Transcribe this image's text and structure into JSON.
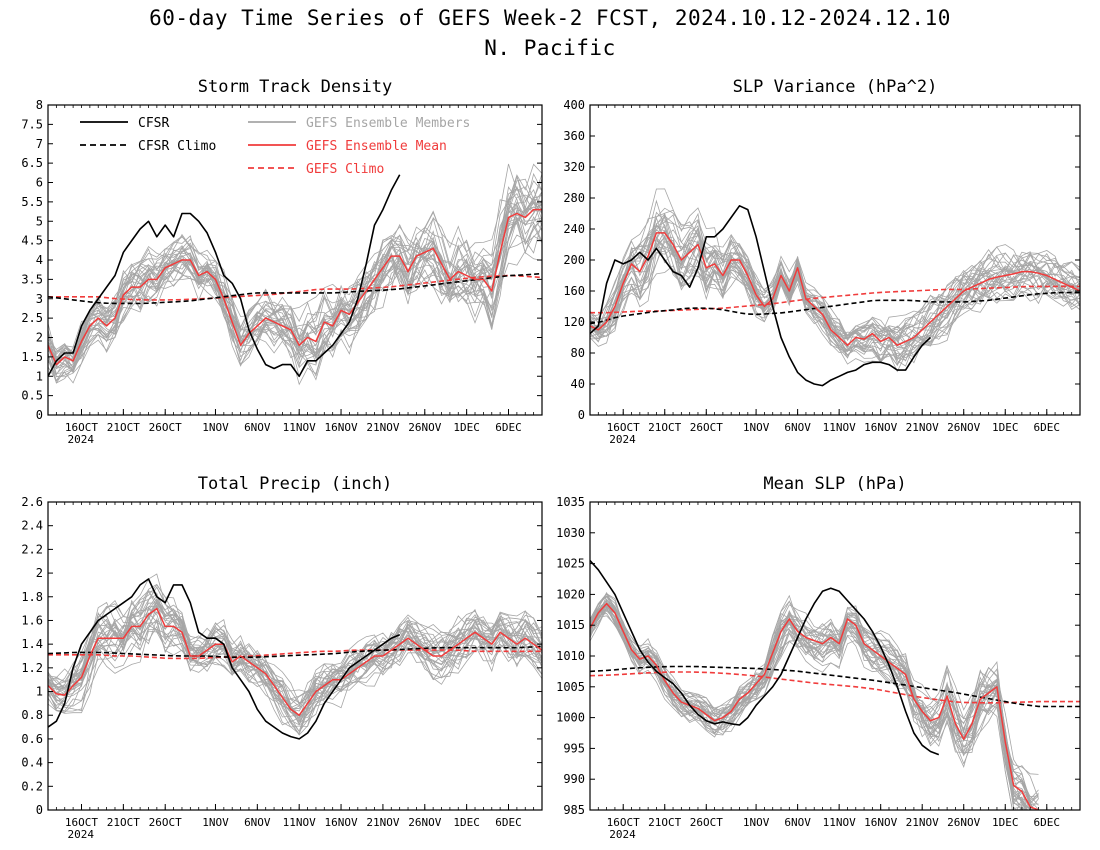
{
  "figure": {
    "title_line1": "60-day Time Series of GEFS Week-2 FCST, 2024.10.12-2024.12.10",
    "title_line2": "N. Pacific"
  },
  "legend": {
    "cfsr": "CFSR",
    "cfsr_climo": "CFSR Climo",
    "members": "GEFS Ensemble Members",
    "mean": "GEFS Ensemble Mean",
    "gefs_climo": "GEFS Climo"
  },
  "colors": {
    "cfsr": "#000000",
    "members": "#a6a6a6",
    "mean": "#f03c3c",
    "gefs_climo": "#f03c3c"
  },
  "chart_data": [
    {
      "type": "line",
      "title": "Storm Track Density",
      "xlabel": "",
      "ylabel": "",
      "x_range_days": [
        0,
        59
      ],
      "x_ticks": [
        {
          "day": 4,
          "label": "16OCT",
          "sub": "2024"
        },
        {
          "day": 9,
          "label": "21OCT"
        },
        {
          "day": 14,
          "label": "26OCT"
        },
        {
          "day": 20,
          "label": "1NOV"
        },
        {
          "day": 25,
          "label": "6NOV"
        },
        {
          "day": 30,
          "label": "11NOV"
        },
        {
          "day": 35,
          "label": "16NOV"
        },
        {
          "day": 40,
          "label": "21NOV"
        },
        {
          "day": 45,
          "label": "26NOV"
        },
        {
          "day": 50,
          "label": "1DEC"
        },
        {
          "day": 55,
          "label": "6DEC"
        }
      ],
      "ylim": [
        0,
        8
      ],
      "y_ticks": [
        "0",
        "0.5",
        "1",
        "1.5",
        "2",
        "2.5",
        "3",
        "3.5",
        "4",
        "4.5",
        "5",
        "5.5",
        "6",
        "6.5",
        "7",
        "7.5",
        "8"
      ],
      "cfsr": [
        1.0,
        1.4,
        1.6,
        1.6,
        2.3,
        2.7,
        3.0,
        3.3,
        3.6,
        4.2,
        4.5,
        4.8,
        5.0,
        4.6,
        4.9,
        4.6,
        5.2,
        5.2,
        5.0,
        4.7,
        4.2,
        3.6,
        3.4,
        3.0,
        2.2,
        1.7,
        1.3,
        1.2,
        1.3,
        1.3,
        1.0,
        1.4,
        1.4,
        1.6,
        1.8,
        2.1,
        2.4,
        3.0,
        3.9,
        4.9,
        5.3,
        5.8,
        6.2
      ],
      "cfsr_climo": [
        3.05,
        3.0,
        2.95,
        2.9,
        2.88,
        2.88,
        2.88,
        2.9,
        2.92,
        2.95,
        3.0,
        3.05,
        3.1,
        3.15,
        3.15,
        3.15,
        3.15,
        3.15,
        3.15,
        3.18,
        3.2,
        3.22,
        3.25,
        3.3,
        3.35,
        3.4,
        3.45,
        3.5,
        3.55,
        3.6,
        3.62,
        3.65
      ],
      "cfsr_climo_start_day": 0,
      "mean": [
        1.8,
        1.3,
        1.5,
        1.4,
        1.9,
        2.3,
        2.5,
        2.3,
        2.5,
        3.1,
        3.3,
        3.3,
        3.5,
        3.5,
        3.8,
        3.9,
        4.0,
        4.0,
        3.6,
        3.7,
        3.5,
        3.0,
        2.4,
        1.8,
        2.1,
        2.3,
        2.5,
        2.4,
        2.3,
        2.2,
        1.8,
        2.0,
        1.9,
        2.4,
        2.3,
        2.7,
        2.6,
        2.9,
        3.2,
        3.5,
        3.8,
        4.1,
        4.1,
        3.7,
        4.1,
        4.2,
        4.3,
        3.9,
        3.5,
        3.7,
        3.6,
        3.5,
        3.5,
        3.2,
        4.2,
        5.1,
        5.2,
        5.1,
        5.3,
        5.3
      ],
      "gefs_climo": [
        3.05,
        3.05,
        3.05,
        3.05,
        3.0,
        2.98,
        2.97,
        2.97,
        2.98,
        3.0,
        3.02,
        3.05,
        3.08,
        3.1,
        3.15,
        3.2,
        3.25,
        3.25,
        3.25,
        3.28,
        3.3,
        3.35,
        3.4,
        3.45,
        3.5,
        3.55,
        3.58,
        3.6,
        3.58,
        3.55
      ],
      "members": {
        "count": 31,
        "spread": [
          1.2,
          1.2,
          1.2,
          1.25,
          1.3,
          1.3,
          1.4,
          1.5,
          1.6,
          1.7,
          1.8,
          1.8,
          1.7,
          1.6,
          1.5,
          1.5,
          1.4,
          1.4,
          1.4,
          1.4,
          1.5,
          1.5,
          1.5,
          1.5,
          1.5,
          1.5,
          1.6,
          1.6,
          1.8,
          1.9,
          2.0,
          2.0,
          2.0,
          2.0,
          1.9,
          1.8,
          1.9,
          2.0,
          2.0,
          2.0,
          2.1,
          2.2,
          2.2,
          2.2,
          2.2,
          2.2,
          2.3,
          2.3,
          2.4,
          2.4,
          2.4,
          2.4,
          2.5,
          2.5,
          2.6,
          2.6,
          2.6,
          2.6,
          2.6,
          2.6
        ]
      }
    },
    {
      "type": "line",
      "title": "SLP Variance (hPa^2)",
      "xlabel": "",
      "ylabel": "",
      "x_range_days": [
        0,
        59
      ],
      "x_ticks": [
        {
          "day": 4,
          "label": "16OCT",
          "sub": "2024"
        },
        {
          "day": 9,
          "label": "21OCT"
        },
        {
          "day": 14,
          "label": "26OCT"
        },
        {
          "day": 20,
          "label": "1NOV"
        },
        {
          "day": 25,
          "label": "6NOV"
        },
        {
          "day": 30,
          "label": "11NOV"
        },
        {
          "day": 35,
          "label": "16NOV"
        },
        {
          "day": 40,
          "label": "21NOV"
        },
        {
          "day": 45,
          "label": "26NOV"
        },
        {
          "day": 50,
          "label": "1DEC"
        },
        {
          "day": 55,
          "label": "6DEC"
        }
      ],
      "ylim": [
        0,
        400
      ],
      "y_ticks": [
        "0",
        "40",
        "80",
        "120",
        "160",
        "200",
        "240",
        "280",
        "320",
        "360",
        "400"
      ],
      "cfsr": [
        105,
        115,
        170,
        200,
        195,
        200,
        210,
        200,
        215,
        200,
        185,
        180,
        165,
        190,
        230,
        230,
        240,
        255,
        270,
        265,
        230,
        185,
        140,
        100,
        75,
        55,
        45,
        40,
        38,
        45,
        50,
        55,
        58,
        65,
        68,
        68,
        65,
        58,
        58,
        75,
        90,
        100
      ],
      "cfsr_climo": [
        118,
        120,
        125,
        128,
        130,
        132,
        134,
        135,
        137,
        138,
        138,
        137,
        135,
        132,
        130,
        130,
        131,
        132,
        134,
        136,
        138,
        140,
        142,
        144,
        146,
        148,
        148,
        148,
        148,
        147,
        146,
        146,
        146,
        146,
        147,
        148,
        150,
        152,
        154,
        156,
        157,
        158,
        158,
        158
      ],
      "cfsr_climo_start_day": 0,
      "mean": [
        115,
        110,
        120,
        140,
        170,
        195,
        185,
        205,
        235,
        235,
        220,
        200,
        210,
        220,
        190,
        195,
        180,
        200,
        200,
        180,
        155,
        140,
        150,
        180,
        160,
        190,
        150,
        140,
        130,
        110,
        100,
        90,
        100,
        98,
        105,
        95,
        100,
        90,
        95,
        100,
        110,
        120,
        130,
        140,
        150,
        160,
        165,
        170,
        175,
        178,
        180,
        182,
        185,
        185,
        183,
        180,
        175,
        170,
        165,
        160
      ],
      "gefs_climo": [
        132,
        132,
        133,
        134,
        134,
        135,
        136,
        137,
        138,
        140,
        142,
        144,
        147,
        150,
        152,
        154,
        156,
        158,
        159,
        160,
        161,
        162,
        162,
        163,
        164,
        165,
        166,
        166,
        166,
        166
      ],
      "members": {
        "count": 31,
        "spread": [
          45,
          50,
          60,
          70,
          80,
          90,
          100,
          105,
          110,
          110,
          105,
          100,
          95,
          90,
          85,
          80,
          80,
          75,
          70,
          65,
          60,
          55,
          55,
          50,
          50,
          50,
          50,
          50,
          50,
          50,
          50,
          50,
          50,
          55,
          60,
          65,
          70,
          75,
          80,
          80,
          80,
          80,
          80,
          80,
          80,
          80,
          80,
          80,
          80,
          80,
          80,
          80,
          80,
          80,
          80,
          75,
          75,
          70,
          70,
          70
        ]
      }
    },
    {
      "type": "line",
      "title": "Total Precip (inch)",
      "xlabel": "",
      "ylabel": "",
      "x_range_days": [
        0,
        59
      ],
      "x_ticks": [
        {
          "day": 4,
          "label": "16OCT",
          "sub": "2024"
        },
        {
          "day": 9,
          "label": "21OCT"
        },
        {
          "day": 14,
          "label": "26OCT"
        },
        {
          "day": 20,
          "label": "1NOV"
        },
        {
          "day": 25,
          "label": "6NOV"
        },
        {
          "day": 30,
          "label": "11NOV"
        },
        {
          "day": 35,
          "label": "16NOV"
        },
        {
          "day": 40,
          "label": "21NOV"
        },
        {
          "day": 45,
          "label": "26NOV"
        },
        {
          "day": 50,
          "label": "1DEC"
        },
        {
          "day": 55,
          "label": "6DEC"
        }
      ],
      "ylim": [
        0,
        2.6
      ],
      "y_ticks": [
        "0",
        "0.2",
        "0.4",
        "0.6",
        "0.8",
        "1",
        "1.2",
        "1.4",
        "1.6",
        "1.8",
        "2",
        "2.2",
        "2.4",
        "2.6"
      ],
      "cfsr": [
        0.7,
        0.75,
        0.9,
        1.2,
        1.4,
        1.5,
        1.6,
        1.65,
        1.7,
        1.75,
        1.8,
        1.9,
        1.95,
        1.8,
        1.75,
        1.9,
        1.9,
        1.75,
        1.5,
        1.45,
        1.45,
        1.4,
        1.2,
        1.1,
        1.0,
        0.85,
        0.75,
        0.7,
        0.65,
        0.62,
        0.6,
        0.65,
        0.75,
        0.9,
        1.0,
        1.1,
        1.2,
        1.25,
        1.3,
        1.35,
        1.4,
        1.45,
        1.48
      ],
      "cfsr_climo": [
        1.32,
        1.33,
        1.33,
        1.32,
        1.31,
        1.3,
        1.3,
        1.29,
        1.29,
        1.3,
        1.31,
        1.32,
        1.34,
        1.35,
        1.36,
        1.37,
        1.37,
        1.37,
        1.37,
        1.38
      ],
      "cfsr_climo_start_day": 0,
      "mean": [
        1.05,
        0.98,
        0.97,
        1.05,
        1.12,
        1.3,
        1.45,
        1.45,
        1.45,
        1.45,
        1.55,
        1.55,
        1.65,
        1.7,
        1.55,
        1.55,
        1.5,
        1.3,
        1.3,
        1.35,
        1.4,
        1.4,
        1.25,
        1.3,
        1.25,
        1.2,
        1.15,
        1.05,
        0.95,
        0.85,
        0.8,
        0.9,
        1.0,
        1.05,
        1.1,
        1.1,
        1.15,
        1.2,
        1.25,
        1.3,
        1.3,
        1.35,
        1.4,
        1.45,
        1.4,
        1.35,
        1.3,
        1.3,
        1.35,
        1.4,
        1.45,
        1.5,
        1.45,
        1.4,
        1.5,
        1.45,
        1.4,
        1.45,
        1.4,
        1.35
      ],
      "gefs_climo": [
        1.31,
        1.31,
        1.31,
        1.31,
        1.3,
        1.3,
        1.29,
        1.28,
        1.28,
        1.28,
        1.29,
        1.29,
        1.3,
        1.31,
        1.32,
        1.33,
        1.34,
        1.34,
        1.35,
        1.35,
        1.35,
        1.35,
        1.35,
        1.35,
        1.35,
        1.34,
        1.34,
        1.34,
        1.34,
        1.34
      ],
      "members": {
        "count": 31,
        "spread": [
          0.35,
          0.4,
          0.45,
          0.5,
          0.55,
          0.6,
          0.65,
          0.65,
          0.7,
          0.7,
          0.7,
          0.7,
          0.65,
          0.6,
          0.55,
          0.5,
          0.5,
          0.45,
          0.45,
          0.45,
          0.45,
          0.45,
          0.45,
          0.45,
          0.45,
          0.45,
          0.45,
          0.45,
          0.45,
          0.45,
          0.45,
          0.45,
          0.45,
          0.45,
          0.45,
          0.45,
          0.45,
          0.45,
          0.45,
          0.45,
          0.45,
          0.45,
          0.45,
          0.45,
          0.45,
          0.45,
          0.5,
          0.5,
          0.5,
          0.5,
          0.5,
          0.5,
          0.5,
          0.5,
          0.5,
          0.5,
          0.5,
          0.5,
          0.5,
          0.5
        ]
      }
    },
    {
      "type": "line",
      "title": "Mean SLP (hPa)",
      "xlabel": "",
      "ylabel": "",
      "x_range_days": [
        0,
        59
      ],
      "x_ticks": [
        {
          "day": 4,
          "label": "16OCT",
          "sub": "2024"
        },
        {
          "day": 9,
          "label": "21OCT"
        },
        {
          "day": 14,
          "label": "26OCT"
        },
        {
          "day": 20,
          "label": "1NOV"
        },
        {
          "day": 25,
          "label": "6NOV"
        },
        {
          "day": 30,
          "label": "11NOV"
        },
        {
          "day": 35,
          "label": "16NOV"
        },
        {
          "day": 40,
          "label": "21NOV"
        },
        {
          "day": 45,
          "label": "26NOV"
        },
        {
          "day": 50,
          "label": "1DEC"
        },
        {
          "day": 55,
          "label": "6DEC"
        }
      ],
      "ylim": [
        985,
        1035
      ],
      "y_ticks": [
        "985",
        "990",
        "995",
        "1000",
        "1005",
        "1010",
        "1015",
        "1020",
        "1025",
        "1030",
        "1035"
      ],
      "cfsr": [
        1025.5,
        1024,
        1022,
        1020,
        1017,
        1014,
        1011,
        1009,
        1007.5,
        1006.5,
        1005.5,
        1004,
        1002,
        1000.5,
        999.5,
        999,
        999.3,
        999,
        998.8,
        1000,
        1002,
        1003.5,
        1005,
        1007,
        1010,
        1013,
        1016,
        1018.5,
        1020.5,
        1021,
        1020.5,
        1019,
        1017.5,
        1016,
        1014,
        1011.5,
        1008.5,
        1005,
        1001,
        997.5,
        995.5,
        994.5,
        994
      ],
      "cfsr_climo": [
        1007.5,
        1007.7,
        1008,
        1008.2,
        1008.3,
        1008.3,
        1008.2,
        1008.1,
        1008,
        1007.8,
        1007.6,
        1007.2,
        1006.8,
        1006.4,
        1006,
        1005.5,
        1005,
        1004.5,
        1004,
        1003.4,
        1002.8,
        1002.2,
        1001.8,
        1001.8,
        1001.8
      ],
      "cfsr_climo_start_day": 0,
      "mean": [
        1014.5,
        1017,
        1018.5,
        1017,
        1014,
        1011,
        1009.5,
        1010,
        1008.5,
        1006,
        1004,
        1002.5,
        1002,
        1001.5,
        1000.5,
        999.5,
        1000,
        1001,
        1003,
        1004,
        1005.5,
        1007,
        1010.5,
        1014,
        1016,
        1014,
        1013,
        1012.5,
        1012,
        1013,
        1012,
        1016,
        1015,
        1012,
        1011,
        1010,
        1009,
        1008,
        1007,
        1003,
        1001,
        999.5,
        1000,
        1003.5,
        999,
        996.5,
        999,
        1003,
        1004,
        1005,
        996,
        989,
        988,
        985.5,
        985
      ],
      "gefs_climo": [
        1006.8,
        1006.9,
        1007.1,
        1007.3,
        1007.4,
        1007.4,
        1007.3,
        1007.1,
        1006.8,
        1006.4,
        1006,
        1005.6,
        1005.3,
        1005,
        1004.6,
        1004,
        1003.4,
        1002.9,
        1002.5,
        1002.4,
        1002.4,
        1002.5,
        1002.6,
        1002.6,
        1002.6
      ],
      "members": {
        "count": 31,
        "spread": [
          5,
          5,
          5,
          5,
          5,
          5,
          5.5,
          6,
          6,
          6,
          6,
          6,
          6,
          6.5,
          6.5,
          6.5,
          6.5,
          6.5,
          6.5,
          6.5,
          7,
          7,
          7.5,
          8,
          8,
          8,
          8,
          8,
          8,
          8,
          8,
          8,
          8,
          8.5,
          9,
          9,
          9,
          9,
          9.5,
          10,
          10,
          10,
          10.5,
          10.5,
          11,
          11,
          11,
          11.5,
          11.5,
          11.5,
          11.5,
          11.5,
          11.5,
          11,
          11,
          11,
          10.5,
          10.5,
          10,
          10
        ]
      }
    }
  ]
}
